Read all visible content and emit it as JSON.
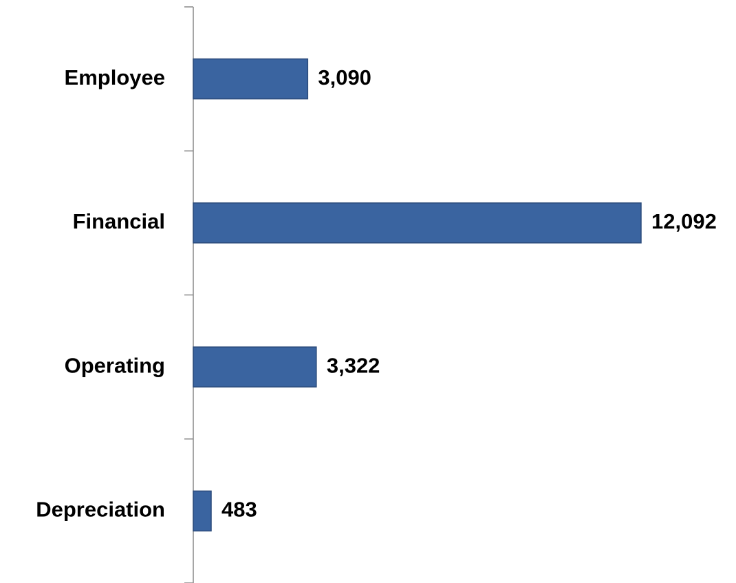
{
  "chart_data": {
    "type": "barh",
    "categories": [
      "Employee",
      "Financial",
      "Operating",
      "Depreciation"
    ],
    "values": [
      3090,
      12092,
      3322,
      483
    ],
    "value_labels": [
      "3,090",
      "12,092",
      "3,322",
      "483"
    ],
    "color": "#3a64a0"
  }
}
